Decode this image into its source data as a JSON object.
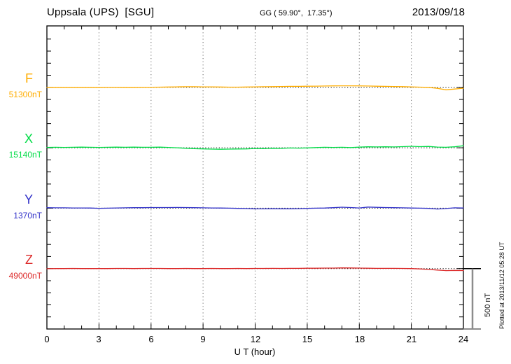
{
  "header": {
    "station": "Uppsala (UPS)  [SGU]",
    "coords": "GG ( 59.90°,  17.35°)",
    "date": "2013/09/18"
  },
  "axis": {
    "x_label": "U T (hour)",
    "x_tick_labels": [
      "0",
      "3",
      "6",
      "9",
      "12",
      "15",
      "18",
      "21",
      "24"
    ]
  },
  "scale_bar": {
    "label": "500 nT"
  },
  "footer_note": "Plotted at 2013/11/12 05:28 UT",
  "colors": {
    "F": "#FFAD00",
    "X": "#00DC46",
    "Y": "#3030C8",
    "Z": "#DC2828",
    "grid": "#777777",
    "frame": "#000000",
    "scalebar": "#8C8C8C"
  },
  "chart_data": {
    "type": "line",
    "title": "Uppsala (UPS) [SGU] magnetogram",
    "date": "2013/09/18",
    "xlabel": "U T (hour)",
    "x_range_hours": [
      0,
      24
    ],
    "x_major_tick_hours": 3,
    "x_minor_tick_hours": 1,
    "x_step_hours": 0.5,
    "y_axis": {
      "tick_interval_nT": 100,
      "division_nT": 500
    },
    "legend_position": "left-margin",
    "grid": "vertical-dotted-every-3h",
    "series": [
      {
        "name": "F",
        "label_value": "51300nT",
        "baseline_nT": 51300,
        "color": "#FFAD00",
        "offsets_nT": [
          0,
          0,
          0,
          0,
          0,
          0,
          0,
          1,
          1,
          0,
          0,
          1,
          1,
          2,
          3,
          4,
          5,
          5,
          4,
          4,
          3,
          2,
          2,
          3,
          4,
          5,
          6,
          7,
          8,
          8,
          9,
          10,
          11,
          12,
          13,
          13,
          12,
          11,
          9,
          8,
          7,
          6,
          4,
          2,
          0,
          -8,
          -20,
          -14,
          -7
        ]
      },
      {
        "name": "X",
        "label_value": "15140nT",
        "baseline_nT": 15140,
        "color": "#00DC46",
        "offsets_nT": [
          3,
          4,
          3,
          4,
          5,
          4,
          3,
          4,
          5,
          4,
          5,
          4,
          4,
          5,
          3,
          0,
          -4,
          -7,
          -9,
          -11,
          -12,
          -11,
          -10,
          -9,
          -6,
          -7,
          -4,
          -5,
          -2,
          -3,
          -1,
          2,
          4,
          3,
          4,
          2,
          5,
          8,
          7,
          8,
          7,
          9,
          12,
          9,
          11,
          6,
          4,
          8,
          17
        ]
      },
      {
        "name": "Y",
        "label_value": "1370nT",
        "baseline_nT": 1370,
        "color": "#3030C8",
        "offsets_nT": [
          4,
          3,
          3,
          2,
          2,
          1,
          -1,
          0,
          2,
          3,
          4,
          4,
          5,
          5,
          5,
          6,
          5,
          4,
          3,
          2,
          1,
          0,
          -2,
          -3,
          -5,
          -6,
          -4,
          -5,
          -5,
          -4,
          -2,
          0,
          1,
          4,
          8,
          5,
          2,
          9,
          7,
          5,
          4,
          3,
          1,
          0,
          -2,
          -7,
          -3,
          3,
          2
        ]
      },
      {
        "name": "Z",
        "label_value": "49000nT",
        "baseline_nT": 49000,
        "color": "#DC2828",
        "offsets_nT": [
          -1,
          0,
          0,
          1,
          0,
          0,
          0,
          0,
          1,
          1,
          0,
          1,
          1,
          1,
          0,
          0,
          1,
          0,
          0,
          1,
          0,
          0,
          1,
          0,
          1,
          1,
          2,
          1,
          2,
          2,
          3,
          3,
          4,
          4,
          6,
          5,
          4,
          3,
          2,
          2,
          2,
          1,
          0,
          -3,
          -7,
          -12,
          -17,
          -15,
          -16
        ]
      }
    ]
  }
}
